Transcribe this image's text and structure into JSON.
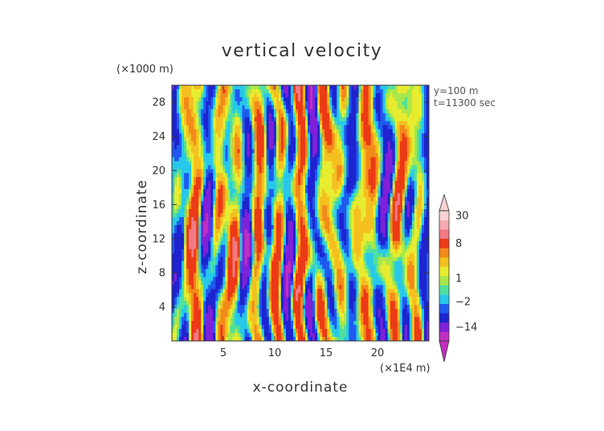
{
  "chart_data": {
    "type": "heatmap",
    "title": "vertical velocity",
    "xlabel": "x-coordinate",
    "ylabel": "z-coordinate",
    "x_unit": "(×1E4 m)",
    "y_unit": "(×1000 m)",
    "annotation_lines": [
      "y=100 m",
      "t=11300 sec"
    ],
    "xlim": [
      0,
      25
    ],
    "ylim": [
      0,
      30
    ],
    "x_ticks": [
      5,
      10,
      15,
      20
    ],
    "y_ticks": [
      4,
      8,
      12,
      16,
      20,
      24,
      28
    ],
    "colorbar": {
      "tick_labels": [
        "30",
        "8",
        "1",
        "−2",
        "−14"
      ],
      "tick_values": [
        30,
        8,
        1,
        -2,
        -14
      ],
      "levels": [
        {
          "value": -20,
          "color": "#c030c0"
        },
        {
          "value": -14,
          "color": "#8020d8"
        },
        {
          "value": -8,
          "color": "#1e24d0"
        },
        {
          "value": -4,
          "color": "#1f5af0"
        },
        {
          "value": -2,
          "color": "#27c8ea"
        },
        {
          "value": 0,
          "color": "#4fe0a0"
        },
        {
          "value": 1,
          "color": "#a8e84a"
        },
        {
          "value": 2,
          "color": "#e8ec30"
        },
        {
          "value": 4,
          "color": "#f4c020"
        },
        {
          "value": 6,
          "color": "#f28a1a"
        },
        {
          "value": 8,
          "color": "#ec3a16"
        },
        {
          "value": 15,
          "color": "#f07a86"
        },
        {
          "value": 22,
          "color": "#f6aab0"
        },
        {
          "value": 30,
          "color": "#f8d2d2"
        }
      ]
    }
  }
}
